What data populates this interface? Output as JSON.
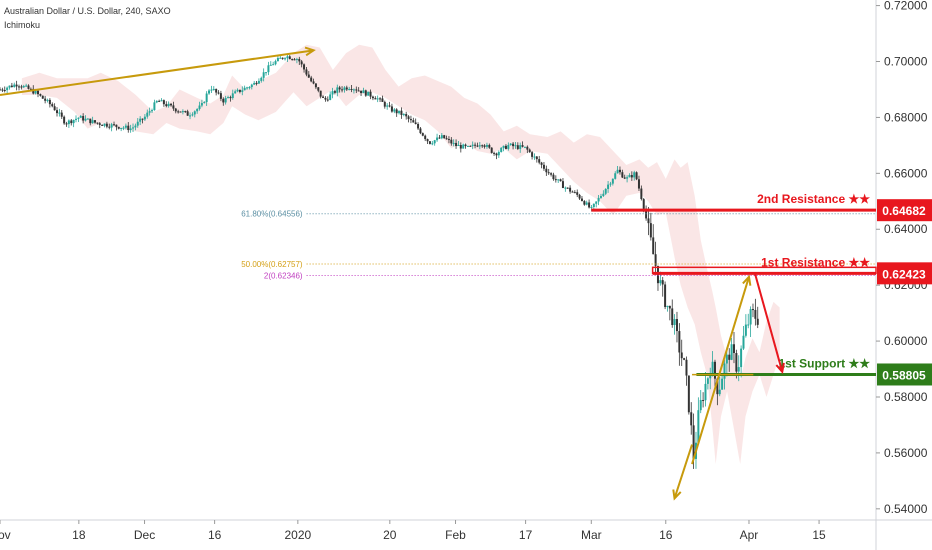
{
  "header": {
    "title": "Australian Dollar / U.S. Dollar, 240, SAXO",
    "indicator": "Ichimoku"
  },
  "chart_data": {
    "type": "candlestick",
    "ylim": [
      0.536,
      0.722
    ],
    "y_ticks": [
      "0.72000",
      "0.70000",
      "0.68000",
      "0.66000",
      "0.64000",
      "0.62000",
      "0.60000",
      "0.58000",
      "0.56000",
      "0.54000"
    ],
    "y_tick_values": [
      0.72,
      0.7,
      0.68,
      0.66,
      0.64,
      0.62,
      0.6,
      0.58,
      0.56,
      0.54
    ],
    "x_ticks": [
      {
        "label": "Nov",
        "t": 0.0
      },
      {
        "label": "18",
        "t": 0.09
      },
      {
        "label": "Dec",
        "t": 0.165
      },
      {
        "label": "16",
        "t": 0.245
      },
      {
        "label": "2020",
        "t": 0.34
      },
      {
        "label": "20",
        "t": 0.445
      },
      {
        "label": "Feb",
        "t": 0.52
      },
      {
        "label": "17",
        "t": 0.6
      },
      {
        "label": "Mar",
        "t": 0.675
      },
      {
        "label": "16",
        "t": 0.76
      },
      {
        "label": "Apr",
        "t": 0.855
      },
      {
        "label": "15",
        "t": 0.935
      }
    ],
    "price_path": [
      [
        0.0,
        0.69
      ],
      [
        0.02,
        0.692
      ],
      [
        0.04,
        0.689
      ],
      [
        0.06,
        0.684
      ],
      [
        0.075,
        0.678
      ],
      [
        0.09,
        0.68
      ],
      [
        0.11,
        0.678
      ],
      [
        0.13,
        0.677
      ],
      [
        0.15,
        0.676
      ],
      [
        0.165,
        0.68
      ],
      [
        0.18,
        0.686
      ],
      [
        0.2,
        0.683
      ],
      [
        0.215,
        0.681
      ],
      [
        0.23,
        0.684
      ],
      [
        0.24,
        0.691
      ],
      [
        0.255,
        0.686
      ],
      [
        0.27,
        0.689
      ],
      [
        0.29,
        0.692
      ],
      [
        0.31,
        0.699
      ],
      [
        0.325,
        0.702
      ],
      [
        0.34,
        0.701
      ],
      [
        0.355,
        0.693
      ],
      [
        0.37,
        0.686
      ],
      [
        0.385,
        0.69
      ],
      [
        0.4,
        0.691
      ],
      [
        0.415,
        0.689
      ],
      [
        0.43,
        0.687
      ],
      [
        0.445,
        0.683
      ],
      [
        0.46,
        0.681
      ],
      [
        0.475,
        0.677
      ],
      [
        0.49,
        0.671
      ],
      [
        0.505,
        0.673
      ],
      [
        0.52,
        0.67
      ],
      [
        0.535,
        0.669
      ],
      [
        0.55,
        0.671
      ],
      [
        0.565,
        0.667
      ],
      [
        0.58,
        0.67
      ],
      [
        0.6,
        0.669
      ],
      [
        0.615,
        0.664
      ],
      [
        0.63,
        0.659
      ],
      [
        0.645,
        0.655
      ],
      [
        0.66,
        0.652
      ],
      [
        0.675,
        0.647
      ],
      [
        0.69,
        0.654
      ],
      [
        0.705,
        0.661
      ],
      [
        0.715,
        0.658
      ],
      [
        0.725,
        0.66
      ],
      [
        0.735,
        0.648
      ],
      [
        0.745,
        0.632
      ],
      [
        0.752,
        0.622
      ],
      [
        0.76,
        0.614
      ],
      [
        0.768,
        0.608
      ],
      [
        0.775,
        0.598
      ],
      [
        0.782,
        0.59
      ],
      [
        0.788,
        0.572
      ],
      [
        0.792,
        0.558
      ],
      [
        0.798,
        0.575
      ],
      [
        0.805,
        0.584
      ],
      [
        0.812,
        0.592
      ],
      [
        0.82,
        0.582
      ],
      [
        0.826,
        0.59
      ],
      [
        0.834,
        0.597
      ],
      [
        0.842,
        0.59
      ],
      [
        0.85,
        0.603
      ],
      [
        0.858,
        0.61
      ],
      [
        0.865,
        0.608
      ]
    ],
    "fib_levels": [
      {
        "label": "61.80%(0.64556)",
        "value": 0.64556,
        "color": "#5b8fa3"
      },
      {
        "label": "50.00%(0.62757)",
        "value": 0.62757,
        "color": "#d4a017"
      },
      {
        "label": "2(0.62346)",
        "value": 0.62346,
        "color": "#c040c0"
      }
    ],
    "levels": [
      {
        "name": "2nd Resistance ★★",
        "value": 0.64682,
        "badge": "0.64682",
        "color": "#e8171e"
      },
      {
        "name": "1st Resistance ★★",
        "value": 0.62423,
        "badge": "0.62423",
        "color": "#e8171e"
      },
      {
        "name": "1st Support ★★",
        "value": 0.58805,
        "badge": "0.58805",
        "color": "#2e7d1a"
      }
    ],
    "grid": false,
    "accent_colors": {
      "up": "#26a69a",
      "down": "#333333",
      "trend": "#c79a0c",
      "cloud": "#f4c7c7"
    }
  }
}
